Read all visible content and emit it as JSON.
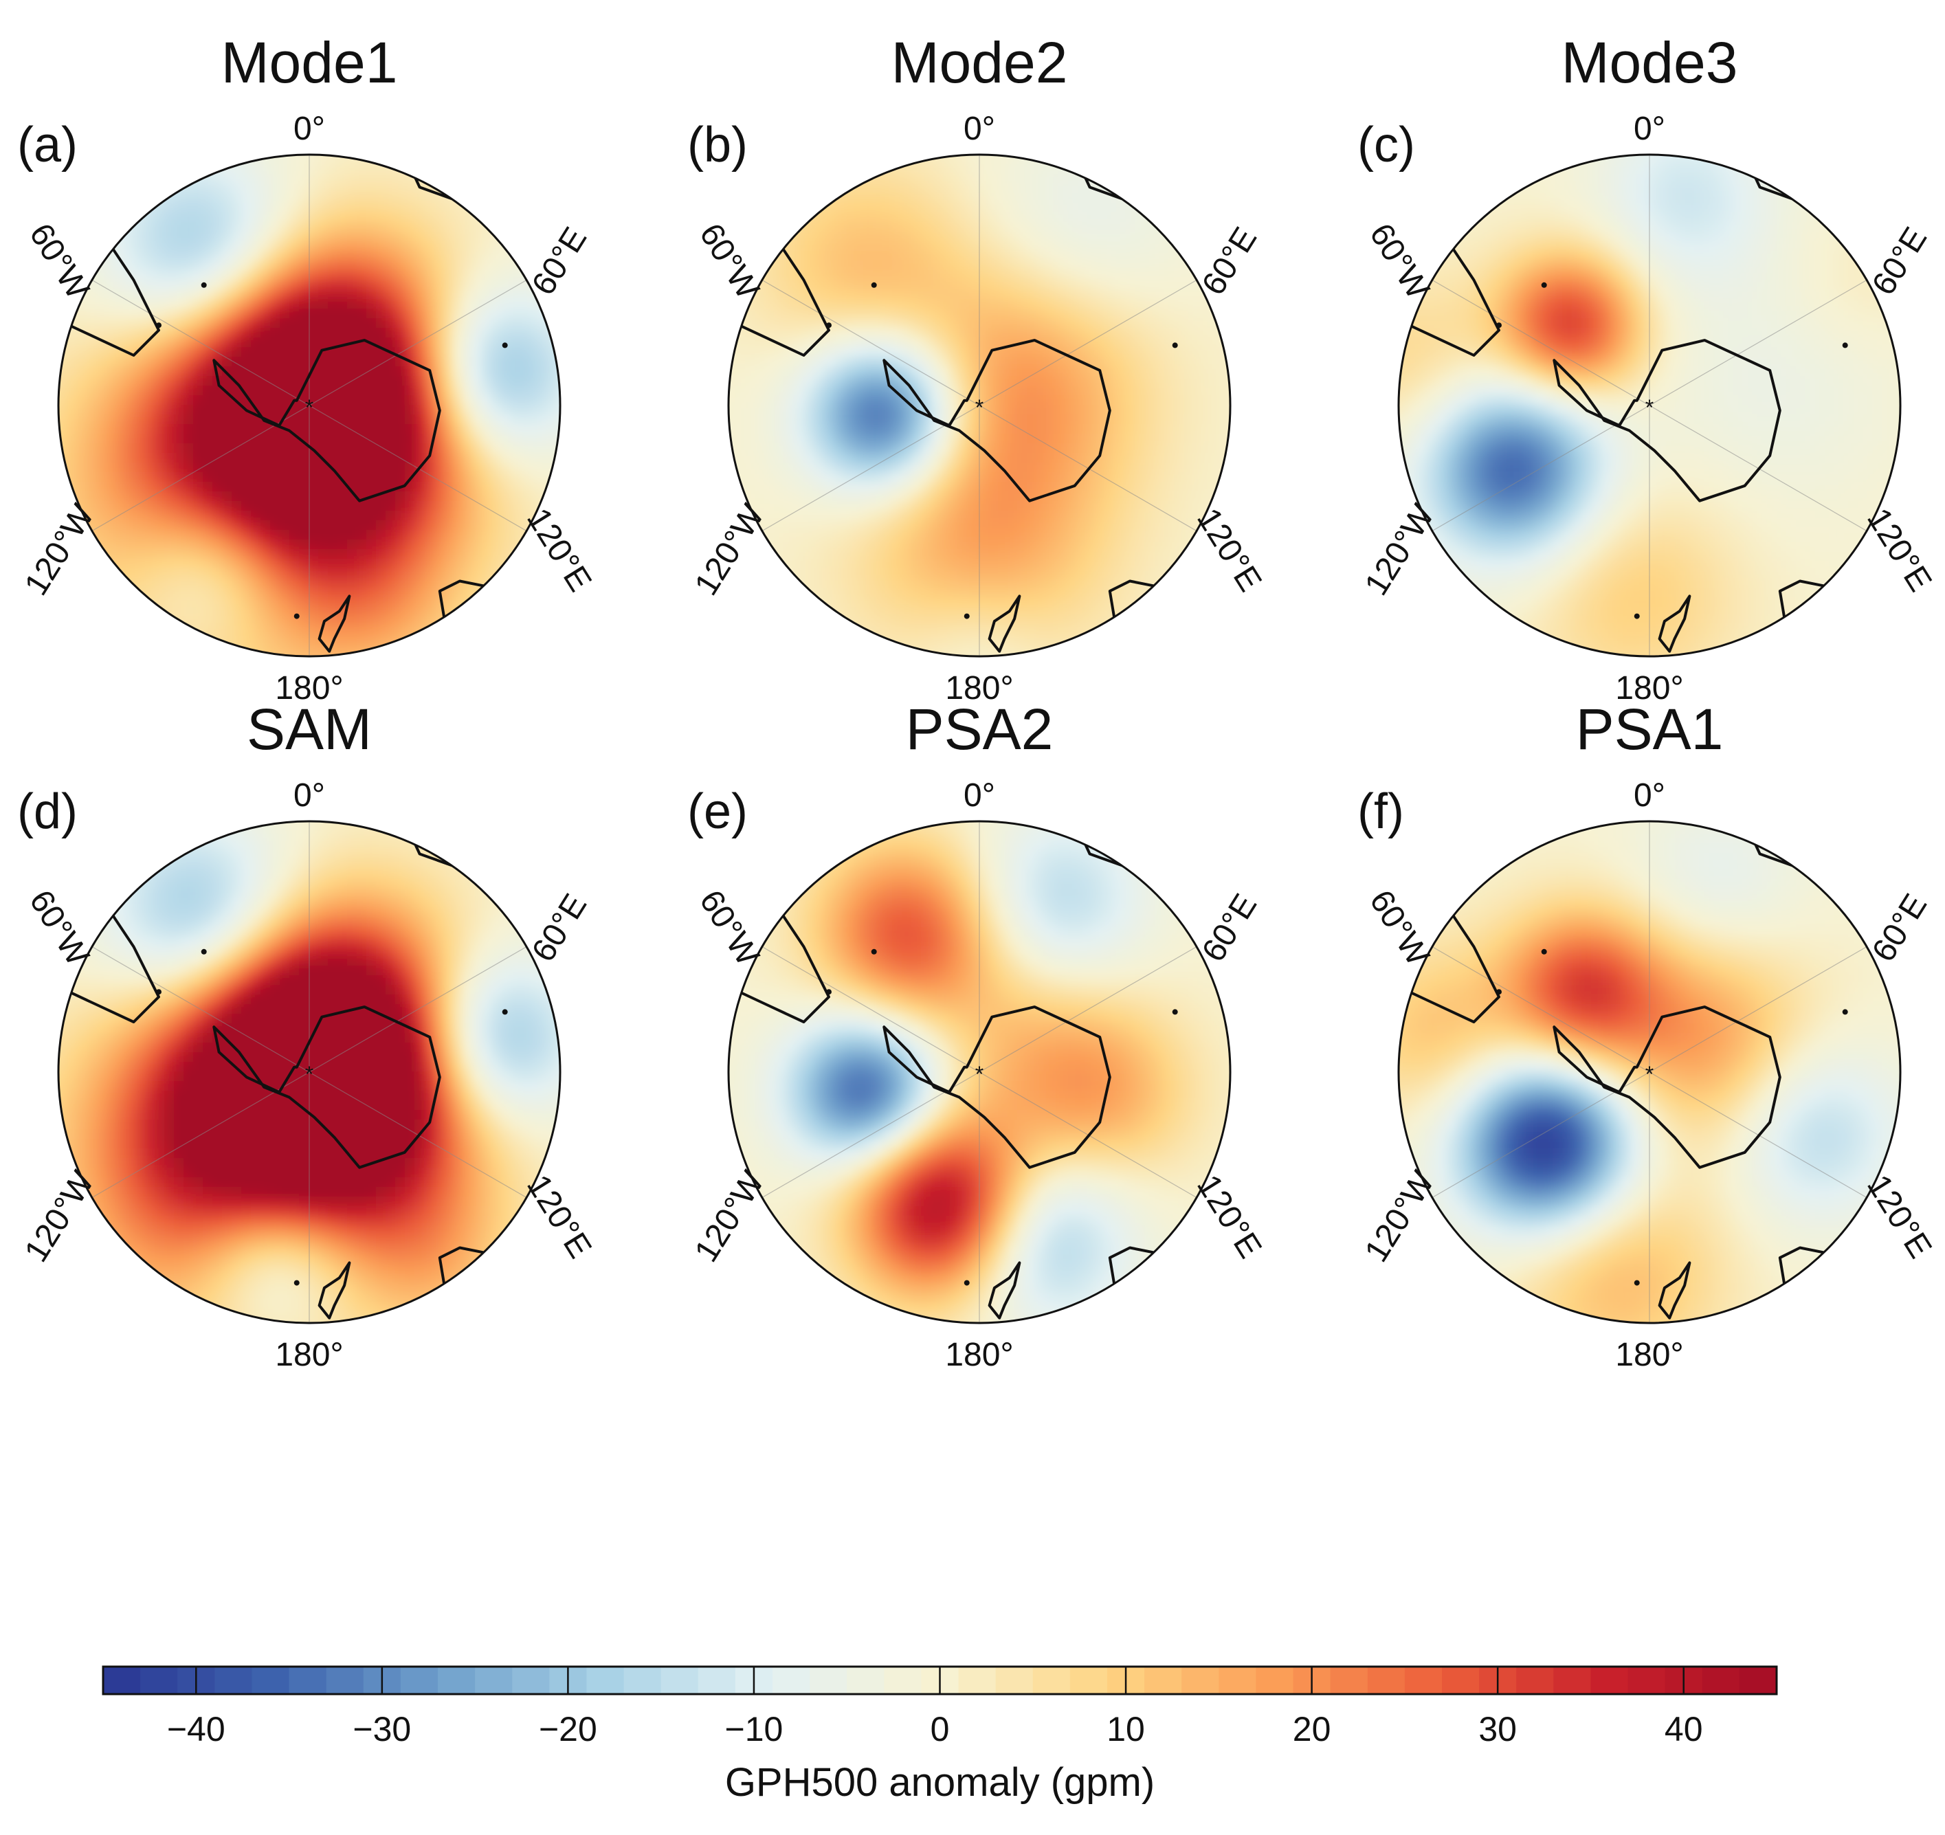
{
  "colors": {
    "scale": [
      "#2a3693",
      "#3d62ad",
      "#6f9fcb",
      "#a9d2e6",
      "#e3f1f3",
      "#f7f2d2",
      "#fed584",
      "#fb9e57",
      "#ec5f3b",
      "#c8202b",
      "#a40d25"
    ],
    "coast": "#111111",
    "frame": "#111111"
  },
  "lon_labels": {
    "n": "0°",
    "ne": "60°E",
    "se": "120°E",
    "s": "180°",
    "sw": "120°W",
    "nw": "60°W"
  },
  "panels": [
    {
      "letter": "(a)",
      "title": "Mode1",
      "blobs": [
        {
          "lon": -150,
          "r": 0.4,
          "a": 45,
          "s": 0.45
        },
        {
          "lon": 30,
          "r": 0.15,
          "a": 40,
          "s": 0.35
        },
        {
          "lon": 120,
          "r": 0.15,
          "a": 20,
          "s": 0.4
        },
        {
          "lon": -35,
          "r": 0.72,
          "a": -25,
          "s": 0.28
        },
        {
          "lon": 80,
          "r": 0.72,
          "a": -30,
          "s": 0.25
        },
        {
          "lon": -150,
          "r": 0.72,
          "a": -28,
          "s": 0.25
        },
        {
          "lon": 160,
          "r": 0.9,
          "a": 4,
          "s": 0.2
        }
      ]
    },
    {
      "letter": "(b)",
      "title": "Mode2",
      "blobs": [
        {
          "lon": -95,
          "r": 0.38,
          "a": -40,
          "s": 0.22
        },
        {
          "lon": 60,
          "r": 0.2,
          "a": 18,
          "s": 0.35
        },
        {
          "lon": -180,
          "r": 0.55,
          "a": 16,
          "s": 0.35
        },
        {
          "lon": -40,
          "r": 0.72,
          "a": 12,
          "s": 0.3
        },
        {
          "lon": 30,
          "r": 0.8,
          "a": -8,
          "s": 0.3
        },
        {
          "lon": 180,
          "r": 0.95,
          "a": -6,
          "s": 0.2
        }
      ]
    },
    {
      "letter": "(c)",
      "title": "Mode3",
      "blobs": [
        {
          "lon": -45,
          "r": 0.45,
          "a": 32,
          "s": 0.2
        },
        {
          "lon": -115,
          "r": 0.6,
          "a": -36,
          "s": 0.25
        },
        {
          "lon": 10,
          "r": 0.85,
          "a": -12,
          "s": 0.25
        },
        {
          "lon": 80,
          "r": 0.5,
          "a": -5,
          "s": 0.35
        },
        {
          "lon": -175,
          "r": 0.75,
          "a": 10,
          "s": 0.3
        },
        {
          "lon": -80,
          "r": 0.95,
          "a": 8,
          "s": 0.25
        },
        {
          "lon": 60,
          "r": 0.95,
          "a": 3,
          "s": 0.2
        }
      ]
    },
    {
      "letter": "(d)",
      "title": "SAM",
      "blobs": [
        {
          "lon": -150,
          "r": 0.4,
          "a": 48,
          "s": 0.45
        },
        {
          "lon": 30,
          "r": 0.15,
          "a": 44,
          "s": 0.35
        },
        {
          "lon": 120,
          "r": 0.15,
          "a": 24,
          "s": 0.4
        },
        {
          "lon": -35,
          "r": 0.72,
          "a": -26,
          "s": 0.28
        },
        {
          "lon": 80,
          "r": 0.72,
          "a": -30,
          "s": 0.25
        },
        {
          "lon": -170,
          "r": 0.72,
          "a": -32,
          "s": 0.25
        },
        {
          "lon": 145,
          "r": 0.92,
          "a": 6,
          "s": 0.2
        }
      ]
    },
    {
      "letter": "(e)",
      "title": "PSA2",
      "blobs": [
        {
          "lon": -28,
          "r": 0.62,
          "a": 28,
          "s": 0.25
        },
        {
          "lon": 25,
          "r": 0.75,
          "a": -16,
          "s": 0.25
        },
        {
          "lon": -100,
          "r": 0.45,
          "a": -38,
          "s": 0.22
        },
        {
          "lon": 100,
          "r": 0.5,
          "a": 14,
          "s": 0.25
        },
        {
          "lon": -165,
          "r": 0.55,
          "a": 45,
          "s": 0.25
        },
        {
          "lon": 160,
          "r": 0.7,
          "a": -22,
          "s": 0.25
        },
        {
          "lon": 60,
          "r": 0.2,
          "a": 10,
          "s": 0.3
        }
      ]
    },
    {
      "letter": "(f)",
      "title": "PSA1",
      "blobs": [
        {
          "lon": -40,
          "r": 0.42,
          "a": 30,
          "s": 0.22
        },
        {
          "lon": -125,
          "r": 0.5,
          "a": -46,
          "s": 0.25
        },
        {
          "lon": 60,
          "r": 0.25,
          "a": 18,
          "s": 0.3
        },
        {
          "lon": 110,
          "r": 0.7,
          "a": -16,
          "s": 0.25
        },
        {
          "lon": 20,
          "r": 0.8,
          "a": -8,
          "s": 0.25
        },
        {
          "lon": -170,
          "r": 0.8,
          "a": 14,
          "s": 0.3
        },
        {
          "lon": -80,
          "r": 0.85,
          "a": 12,
          "s": 0.25
        }
      ]
    }
  ],
  "colorbar": {
    "min": -45,
    "max": 45,
    "ticks": [
      -40,
      -30,
      -20,
      -10,
      0,
      10,
      20,
      30,
      40
    ],
    "tick_labels": [
      "−40",
      "−30",
      "−20",
      "−10",
      "0",
      "10",
      "20",
      "30",
      "40"
    ],
    "label": "GPH500 anomaly (gpm)"
  }
}
